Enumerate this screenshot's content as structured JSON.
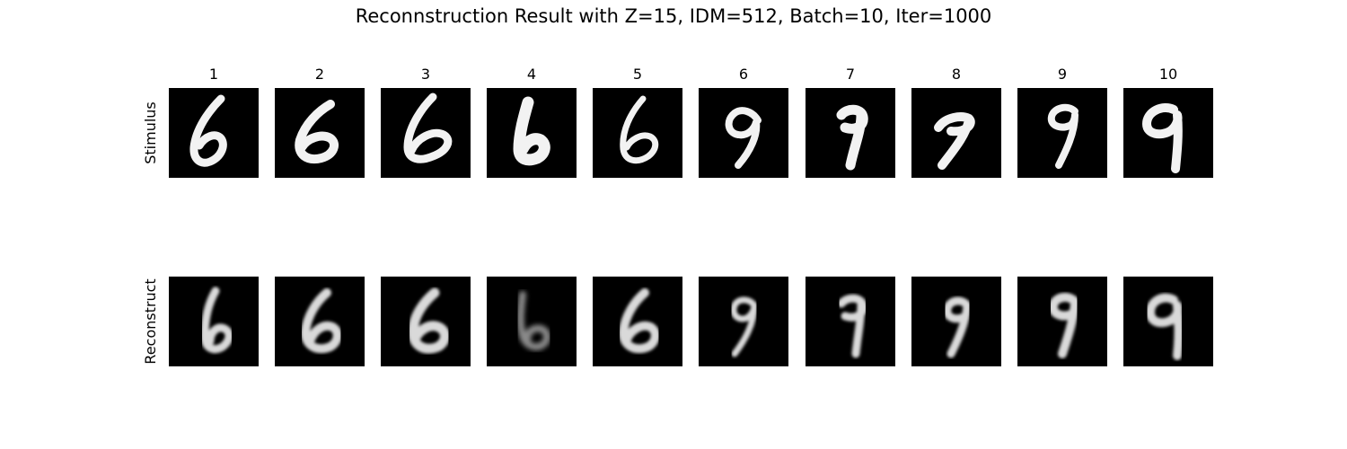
{
  "title": "Reconnstruction Result with Z=15, IDM=512, Batch=10, Iter=1000",
  "columns": [
    "1",
    "2",
    "3",
    "4",
    "5",
    "6",
    "7",
    "8",
    "9",
    "10"
  ],
  "rows": {
    "stimulus_label": "Stimulus",
    "reconstruct_label": "Reconstruct"
  },
  "stimulus_digits": [
    6,
    6,
    6,
    6,
    6,
    9,
    9,
    9,
    9,
    9
  ],
  "reconstruct_digits": [
    6,
    6,
    6,
    6,
    6,
    9,
    9,
    9,
    9,
    9
  ],
  "colors": {
    "tile_background": "#000000",
    "digit": "#f2f2f2"
  }
}
